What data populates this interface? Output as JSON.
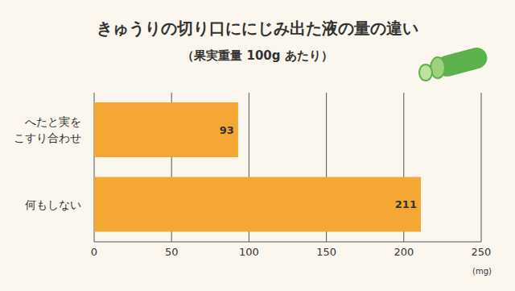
{
  "chart_data": {
    "type": "bar",
    "title": "きゅうりの切り口ににじみ出た液の量の違い",
    "subtitle": "（果実重量 100g あたり）",
    "categories": [
      "へたと実を\nこすり合わせ",
      "何もしない"
    ],
    "values": [
      93,
      211
    ],
    "color": "#f5a733",
    "xlim": [
      0,
      250
    ],
    "xticks": [
      0,
      50,
      100,
      150,
      200,
      250
    ],
    "xlabel": "(mg)",
    "orientation": "horizontal",
    "grid": true,
    "data_labels": true
  }
}
